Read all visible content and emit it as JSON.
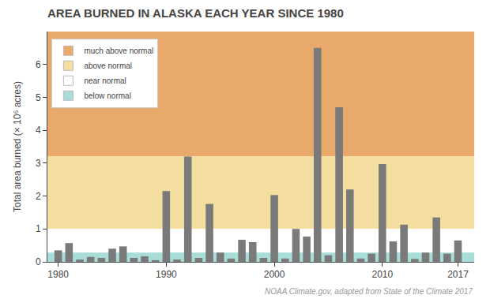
{
  "chart_data": {
    "type": "bar",
    "title": "AREA BURNED IN ALASKA EACH YEAR SINCE 1980",
    "ylabel": "Total area burned (× 10⁶ acres)",
    "annotations": [
      "NOAA Climate.gov, adapted from State of the Climate 2017"
    ],
    "x": [
      1980,
      1981,
      1982,
      1983,
      1984,
      1985,
      1986,
      1987,
      1988,
      1989,
      1990,
      1991,
      1992,
      1993,
      1994,
      1995,
      1996,
      1997,
      1998,
      1999,
      2000,
      2001,
      2002,
      2003,
      2004,
      2005,
      2006,
      2007,
      2008,
      2009,
      2010,
      2011,
      2012,
      2013,
      2014,
      2015,
      2016,
      2017
    ],
    "values": [
      0.35,
      0.57,
      0.07,
      0.15,
      0.12,
      0.4,
      0.47,
      0.12,
      0.17,
      0.05,
      2.15,
      0.07,
      3.2,
      0.12,
      1.76,
      0.28,
      0.1,
      0.67,
      0.6,
      0.12,
      2.03,
      0.1,
      1.0,
      0.77,
      6.5,
      0.2,
      4.7,
      2.2,
      0.1,
      0.25,
      2.97,
      0.62,
      1.13,
      0.09,
      0.28,
      1.35,
      0.25,
      0.65
    ],
    "color": "#7a7a7a",
    "zones": [
      {
        "name": "much above normal",
        "color": "#E8A96A",
        "bottom": 3.2
      },
      {
        "name": "above normal",
        "color": "#F5DFA0",
        "bottom": 1.0
      },
      {
        "name": "near normal",
        "color": "#FFFFFF",
        "bottom": 0.28
      },
      {
        "name": "below normal",
        "color": "#A8DDD8",
        "bottom": 0.0
      }
    ],
    "xlim": [
      1979.0,
      2018.5
    ],
    "xticks": [
      1980,
      1990,
      2000,
      2010,
      2017
    ],
    "ylim": [
      0,
      7
    ],
    "yticks": [
      0,
      1,
      2,
      3,
      4,
      5,
      6
    ],
    "grid": false,
    "legend": "upper left"
  }
}
